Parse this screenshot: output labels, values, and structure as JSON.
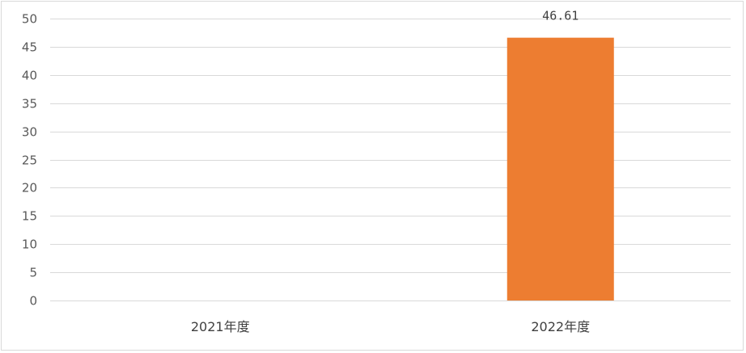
{
  "chart_data": {
    "type": "bar",
    "categories": [
      "2021年度",
      "2022年度"
    ],
    "values": [
      null,
      46.61
    ],
    "data_labels": [
      "",
      "46.61"
    ],
    "ylim": [
      0,
      50
    ],
    "yticks": [
      0,
      5,
      10,
      15,
      20,
      25,
      30,
      35,
      40,
      45,
      50
    ],
    "grid": true,
    "legend": "none",
    "bar_color": "#ED7D31",
    "grid_color": "#d9d9d9"
  }
}
